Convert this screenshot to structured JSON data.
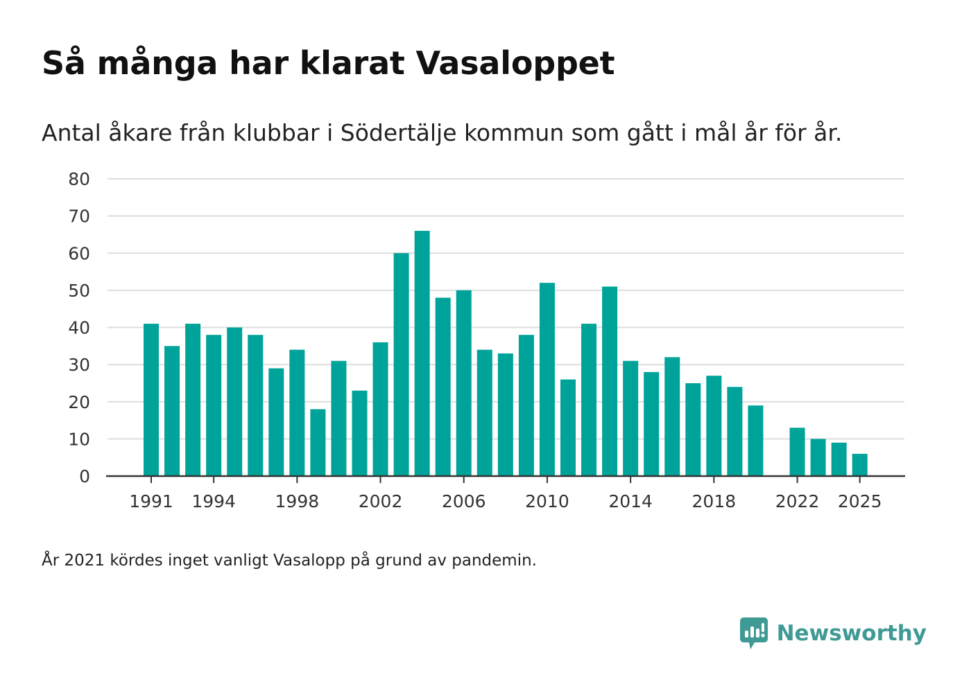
{
  "chart_data": {
    "type": "bar",
    "title": "Så många har klarat Vasaloppet",
    "subtitle": "Antal åkare från klubbar i Södertälje kommun som gått i mål år för år.",
    "categories": [
      "1991",
      "1992",
      "1993",
      "1994",
      "1995",
      "1996",
      "1997",
      "1998",
      "1999",
      "2000",
      "2001",
      "2002",
      "2003",
      "2004",
      "2005",
      "2006",
      "2007",
      "2008",
      "2009",
      "2010",
      "2011",
      "2012",
      "2013",
      "2014",
      "2015",
      "2016",
      "2017",
      "2018",
      "2019",
      "2020",
      "2021",
      "2022",
      "2023",
      "2024",
      "2025"
    ],
    "values": [
      41,
      35,
      41,
      38,
      40,
      38,
      29,
      34,
      18,
      31,
      23,
      36,
      60,
      66,
      48,
      50,
      34,
      33,
      38,
      52,
      26,
      41,
      51,
      31,
      28,
      32,
      25,
      27,
      24,
      19,
      null,
      13,
      10,
      9,
      6
    ],
    "x_tick_labels": [
      "1991",
      "1994",
      "1998",
      "2002",
      "2006",
      "2010",
      "2014",
      "2018",
      "2022",
      "2025"
    ],
    "y_ticks": [
      "0",
      "10",
      "20",
      "30",
      "40",
      "50",
      "60",
      "70",
      "80"
    ],
    "ylim": [
      0,
      80
    ],
    "xlabel": "",
    "ylabel": "",
    "grid": true,
    "bar_color": "#00a399",
    "footnote": "År 2021 kördes inget vanligt Vasalopp på grund av pandemin."
  },
  "brand": {
    "name": "Newsworthy",
    "icon": "newsworthy-logo-icon",
    "color": "#3f9a95"
  }
}
